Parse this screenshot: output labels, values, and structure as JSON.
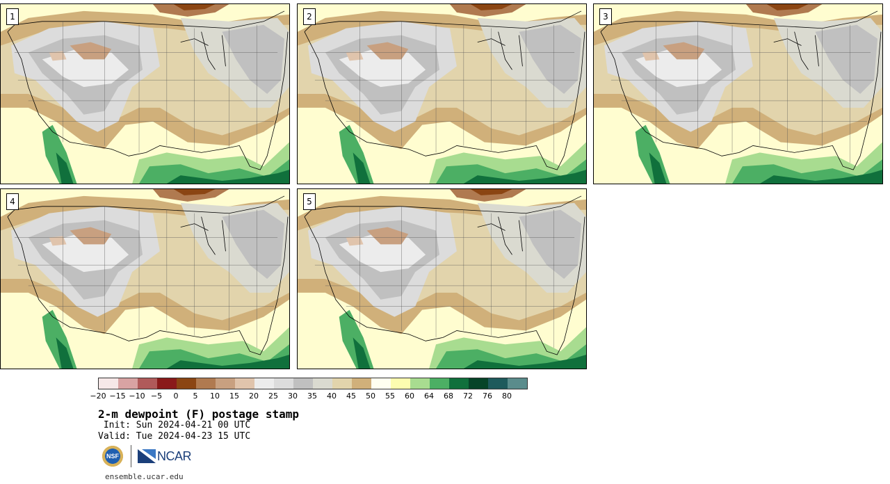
{
  "panels": [
    {
      "label": "1"
    },
    {
      "label": "2"
    },
    {
      "label": "3"
    },
    {
      "label": "4"
    },
    {
      "label": "5"
    }
  ],
  "colorbar": {
    "colors": [
      "#f6e8e8",
      "#d8a3a3",
      "#b05a5a",
      "#8a1a1a",
      "#8b4513",
      "#b07a50",
      "#c8a080",
      "#e0c4ac",
      "#ececec",
      "#dcdcdc",
      "#c0c0c0",
      "#dadad0",
      "#e2d4ac",
      "#d0b07a",
      "#fffff0",
      "#fdfdb0",
      "#a8dc90",
      "#4caf64",
      "#10703c",
      "#064428",
      "#1e5a5c",
      "#5a8c8c"
    ],
    "ticks": [
      "−20",
      "−15",
      "−10",
      "−5",
      "0",
      "5",
      "10",
      "15",
      "20",
      "25",
      "30",
      "35",
      "40",
      "45",
      "50",
      "55",
      "60",
      "64",
      "68",
      "72",
      "76",
      "80"
    ]
  },
  "title": "2-m dewpoint (F) postage stamp",
  "init": " Init: Sun 2024-04-21 00 UTC",
  "valid": "Valid: Tue 2024-04-23 15 UTC",
  "logos": {
    "nsf": "NSF",
    "ncar": "NCAR"
  },
  "url": "ensemble.ucar.edu"
}
